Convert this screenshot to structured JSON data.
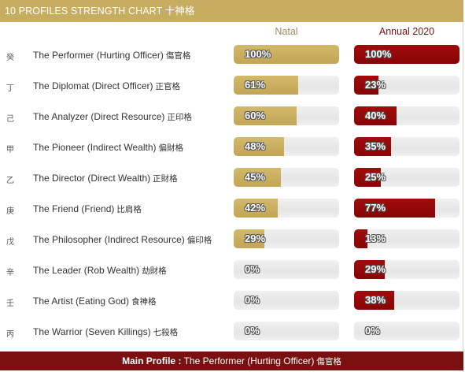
{
  "title": "10 PROFILES STRENGTH CHART 十神格",
  "columns": {
    "natal": "Natal",
    "annual": "Annual 2020"
  },
  "colors": {
    "natal": "#c7ad5f",
    "annual": "#8f0808",
    "footer": "#7a1010"
  },
  "chart_data": {
    "type": "bar",
    "categories": [
      "The Performer (Hurting Officer) 傷官格",
      "The Diplomat (Direct Officer) 正官格",
      "The Analyzer (Direct Resource) 正印格",
      "The Pioneer (Indirect Wealth) 偏財格",
      "The Director (Direct Wealth) 正財格",
      "The Friend (Friend) 比肩格",
      "The Philosopher (Indirect Resource) 偏印格",
      "The Leader (Rob Wealth) 劫財格",
      "The Artist (Eating God) 食神格",
      "The Warrior (Seven Killings) 七殺格"
    ],
    "stems": [
      "癸",
      "丁",
      "己",
      "甲",
      "乙",
      "庚",
      "戊",
      "辛",
      "壬",
      "丙"
    ],
    "series": [
      {
        "name": "Natal",
        "values": [
          100,
          61,
          60,
          48,
          45,
          42,
          29,
          0,
          0,
          0
        ]
      },
      {
        "name": "Annual 2020",
        "values": [
          100,
          23,
          40,
          35,
          25,
          77,
          13,
          29,
          38,
          0
        ]
      }
    ],
    "ylim": [
      0,
      100
    ]
  },
  "rows": [
    {
      "en": "The Performer (Hurting Officer)",
      "cn": "傷官格",
      "natal_label": "100%",
      "annual_label": "100%"
    },
    {
      "en": "The Diplomat (Direct Officer)",
      "cn": "正官格",
      "natal_label": "61%",
      "annual_label": "23%"
    },
    {
      "en": "The Analyzer (Direct Resource)",
      "cn": "正印格",
      "natal_label": "60%",
      "annual_label": "40%"
    },
    {
      "en": "The Pioneer (Indirect Wealth)",
      "cn": "偏財格",
      "natal_label": "48%",
      "annual_label": "35%"
    },
    {
      "en": "The Director (Direct Wealth)",
      "cn": "正財格",
      "natal_label": "45%",
      "annual_label": "25%"
    },
    {
      "en": "The Friend (Friend)",
      "cn": "比肩格",
      "natal_label": "42%",
      "annual_label": "77%"
    },
    {
      "en": "The Philosopher (Indirect Resource)",
      "cn": "偏印格",
      "natal_label": "29%",
      "annual_label": "13%"
    },
    {
      "en": "The Leader (Rob Wealth)",
      "cn": "劫財格",
      "natal_label": "0%",
      "annual_label": "29%"
    },
    {
      "en": "The Artist (Eating God)",
      "cn": "食神格",
      "natal_label": "0%",
      "annual_label": "38%"
    },
    {
      "en": "The Warrior (Seven Killings)",
      "cn": "七殺格",
      "natal_label": "0%",
      "annual_label": "0%"
    }
  ],
  "footer": {
    "label": "Main Profile :",
    "value": "The Performer (Hurting Officer)",
    "value_cn": "傷官格"
  }
}
